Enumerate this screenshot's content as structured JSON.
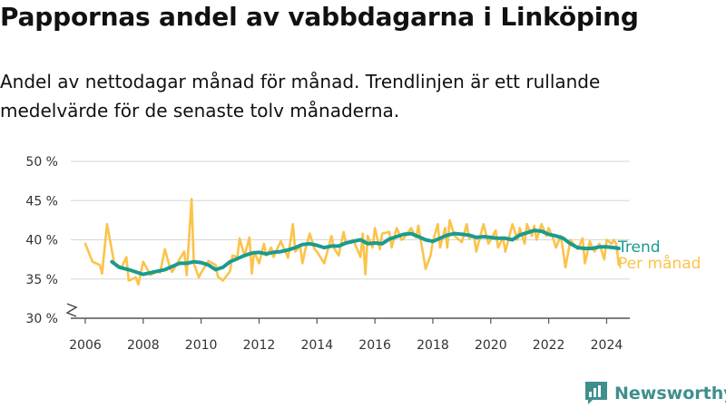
{
  "title": "Pappornas andel av vabbdagarna i Linköping",
  "subtitle": "Andel av nettodagar månad för månad. Trendlinjen är ett rullande medelvärde för de senaste tolv månaderna.",
  "brand": {
    "name": "Newsworthy",
    "logo_icon": "newsworthy-bar-chart-icon"
  },
  "chart_data": {
    "type": "line",
    "title": "Pappornas andel av vabbdagarna i Linköping",
    "subtitle": "Andel av nettodagar månad för månad. Trendlinjen är ett rullande medelvärde för de senaste tolv månaderna.",
    "xlabel": "",
    "ylabel": "",
    "y_unit": "%",
    "ylim": [
      30,
      50
    ],
    "y_axis_break": true,
    "xlim": [
      2005.5,
      2024.8
    ],
    "x_ticks": [
      2006,
      2008,
      2010,
      2012,
      2014,
      2016,
      2018,
      2020,
      2022,
      2024
    ],
    "y_ticks": [
      30,
      35,
      40,
      45,
      50
    ],
    "y_tick_labels": [
      "30 %",
      "35 %",
      "40 %",
      "45 %",
      "50 %"
    ],
    "grid": true,
    "legend": "right, at line ends",
    "series": [
      {
        "name": "Per månad",
        "color": "#fbc34a",
        "x": [
          2006.0,
          2006.25,
          2006.5,
          2006.58,
          2006.75,
          2007.0,
          2007.25,
          2007.42,
          2007.5,
          2007.75,
          2007.83,
          2008.0,
          2008.25,
          2008.5,
          2008.58,
          2008.75,
          2008.92,
          2009.0,
          2009.25,
          2009.42,
          2009.5,
          2009.67,
          2009.75,
          2009.92,
          2010.0,
          2010.25,
          2010.5,
          2010.58,
          2010.75,
          2011.0,
          2011.08,
          2011.25,
          2011.33,
          2011.42,
          2011.5,
          2011.67,
          2011.75,
          2011.83,
          2012.0,
          2012.17,
          2012.25,
          2012.42,
          2012.5,
          2012.58,
          2012.75,
          2013.0,
          2013.17,
          2013.25,
          2013.42,
          2013.5,
          2013.58,
          2013.75,
          2013.92,
          2014.0,
          2014.25,
          2014.5,
          2014.58,
          2014.75,
          2014.92,
          2015.0,
          2015.25,
          2015.5,
          2015.58,
          2015.67,
          2015.75,
          2015.92,
          2016.0,
          2016.17,
          2016.25,
          2016.5,
          2016.58,
          2016.75,
          2016.92,
          2017.0,
          2017.25,
          2017.42,
          2017.5,
          2017.58,
          2017.75,
          2017.92,
          2018.0,
          2018.17,
          2018.25,
          2018.42,
          2018.5,
          2018.58,
          2018.75,
          2019.0,
          2019.17,
          2019.25,
          2019.42,
          2019.5,
          2019.75,
          2019.92,
          2020.0,
          2020.17,
          2020.25,
          2020.42,
          2020.5,
          2020.75,
          2020.92,
          2021.0,
          2021.17,
          2021.25,
          2021.42,
          2021.5,
          2021.58,
          2021.75,
          2021.92,
          2022.0,
          2022.17,
          2022.25,
          2022.42,
          2022.5,
          2022.58,
          2022.75,
          2023.0,
          2023.17,
          2023.25,
          2023.42,
          2023.5,
          2023.58,
          2023.75,
          2023.92,
          2024.0,
          2024.17,
          2024.25,
          2024.33,
          2024.42
        ],
        "values": [
          39.5,
          37.2,
          36.8,
          35.7,
          42.0,
          37.0,
          36.5,
          37.8,
          34.8,
          35.2,
          34.3,
          37.2,
          35.5,
          36.0,
          35.8,
          38.8,
          36.5,
          35.9,
          37.5,
          38.5,
          35.5,
          45.2,
          37.0,
          35.2,
          35.8,
          37.3,
          36.8,
          35.3,
          34.8,
          36.0,
          38.0,
          37.8,
          40.2,
          39.0,
          38.0,
          40.3,
          35.7,
          38.5,
          37.0,
          39.5,
          38.0,
          39.0,
          37.8,
          38.5,
          39.8,
          37.7,
          42.0,
          38.5,
          39.2,
          37.0,
          38.5,
          40.8,
          38.8,
          38.5,
          37.0,
          40.5,
          39.0,
          38.0,
          41.0,
          39.5,
          40.0,
          37.8,
          40.8,
          35.6,
          40.5,
          39.0,
          41.5,
          38.8,
          40.8,
          41.0,
          39.0,
          41.5,
          40.0,
          40.2,
          41.5,
          40.3,
          41.8,
          40.0,
          36.3,
          38.0,
          39.8,
          42.0,
          39.0,
          41.5,
          39.0,
          42.5,
          40.5,
          39.7,
          42.0,
          40.2,
          40.5,
          38.5,
          42.0,
          39.5,
          40.0,
          41.2,
          39.0,
          40.3,
          38.5,
          42.0,
          40.0,
          41.5,
          39.5,
          42.0,
          40.5,
          41.8,
          40.0,
          42.0,
          40.5,
          41.5,
          40.0,
          39.0,
          40.5,
          38.5,
          36.5,
          40.0,
          38.8,
          40.2,
          37.0,
          39.8,
          39.0,
          38.5,
          39.5,
          37.5,
          40.0,
          39.5,
          40.0,
          39.5,
          36.8
        ]
      },
      {
        "name": "Trend",
        "color": "#1a9b8f",
        "x": [
          2006.92,
          2007.17,
          2007.5,
          2008.0,
          2008.5,
          2008.75,
          2009.0,
          2009.25,
          2009.5,
          2009.75,
          2010.0,
          2010.25,
          2010.5,
          2010.75,
          2011.0,
          2011.25,
          2011.5,
          2011.75,
          2012.0,
          2012.25,
          2012.5,
          2012.75,
          2013.0,
          2013.25,
          2013.5,
          2013.75,
          2014.0,
          2014.25,
          2014.5,
          2014.75,
          2015.0,
          2015.25,
          2015.5,
          2015.75,
          2016.0,
          2016.25,
          2016.5,
          2016.75,
          2017.0,
          2017.25,
          2017.5,
          2017.75,
          2018.0,
          2018.25,
          2018.5,
          2018.75,
          2019.0,
          2019.25,
          2019.5,
          2019.75,
          2020.0,
          2020.25,
          2020.5,
          2020.75,
          2021.0,
          2021.25,
          2021.5,
          2021.75,
          2022.0,
          2022.25,
          2022.5,
          2022.75,
          2023.0,
          2023.25,
          2023.5,
          2023.75,
          2024.0,
          2024.25,
          2024.42
        ],
        "values": [
          37.2,
          36.5,
          36.2,
          35.6,
          36.0,
          36.2,
          36.6,
          37.0,
          37.0,
          37.2,
          37.1,
          36.8,
          36.2,
          36.5,
          37.2,
          37.6,
          38.0,
          38.3,
          38.4,
          38.2,
          38.4,
          38.5,
          38.7,
          39.0,
          39.4,
          39.5,
          39.3,
          39.0,
          39.2,
          39.2,
          39.6,
          39.8,
          40.0,
          39.5,
          39.6,
          39.5,
          40.1,
          40.4,
          40.7,
          40.8,
          40.4,
          40.0,
          39.8,
          40.2,
          40.6,
          40.8,
          40.7,
          40.6,
          40.3,
          40.4,
          40.3,
          40.2,
          40.2,
          40.0,
          40.6,
          40.9,
          41.2,
          41.1,
          40.7,
          40.5,
          40.2,
          39.5,
          39.0,
          38.9,
          38.9,
          39.1,
          39.1,
          39.0,
          38.9
        ]
      }
    ]
  }
}
